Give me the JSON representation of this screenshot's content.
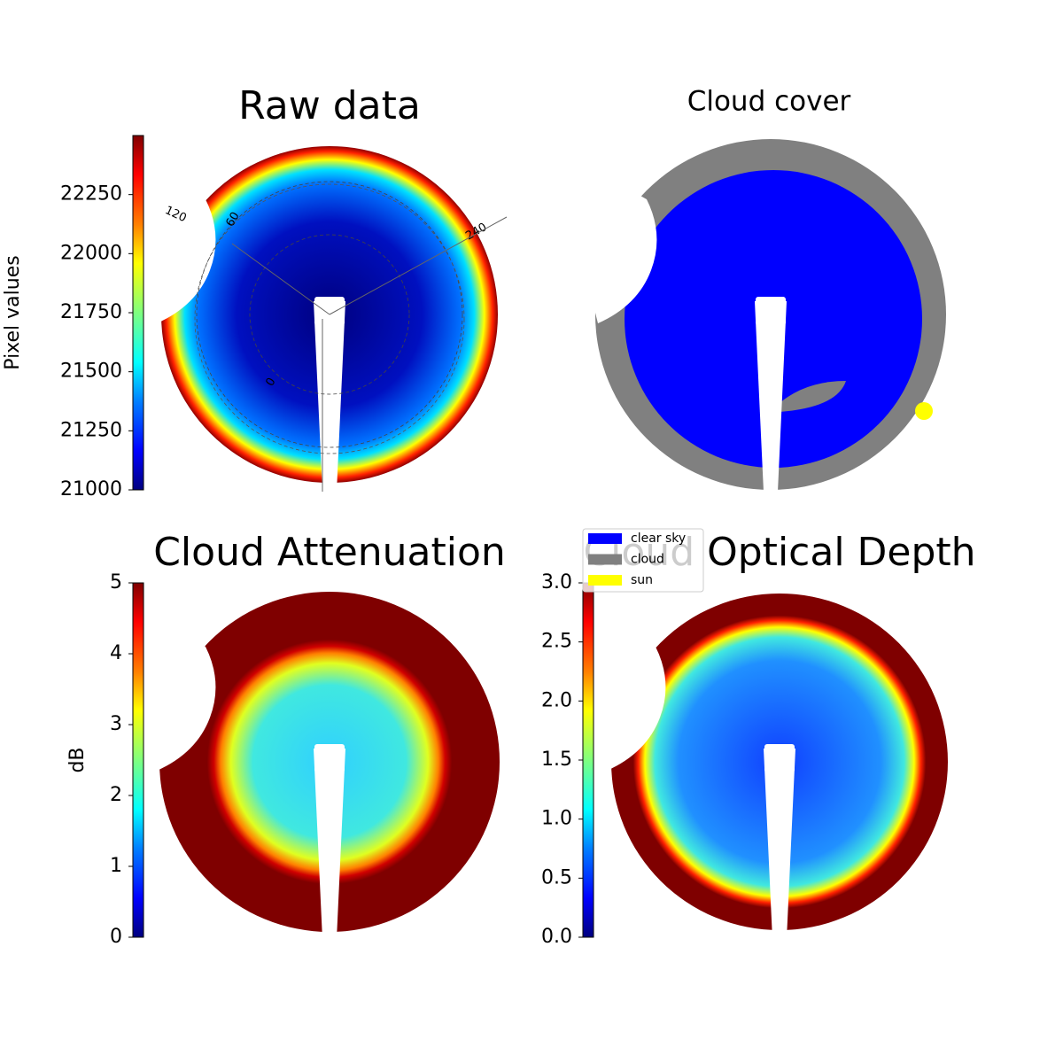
{
  "chart_data": [
    {
      "type": "image",
      "title": "Raw data",
      "colorbar": {
        "label": "Pixel values",
        "lim": [
          21000,
          22500
        ],
        "ticks": [
          21000,
          21250,
          21500,
          21750,
          22000,
          22250
        ]
      },
      "angle_ticks": [
        120,
        60,
        240,
        0
      ]
    },
    {
      "type": "image",
      "title": "Cloud cover",
      "legend": [
        {
          "name": "clear sky",
          "color": "#0000ff"
        },
        {
          "name": "cloud",
          "color": "#808080"
        },
        {
          "name": "sun",
          "color": "#ffff00"
        }
      ]
    },
    {
      "type": "image",
      "title": "Cloud Attenuation",
      "colorbar": {
        "label": "dB",
        "lim": [
          0,
          5
        ],
        "ticks": [
          0,
          1,
          2,
          3,
          4,
          5
        ]
      }
    },
    {
      "type": "image",
      "title": "Cloud Optical Depth",
      "colorbar": {
        "lim": [
          0,
          3
        ],
        "ticks": [
          {
            "value": 0,
            "label": "0.0"
          },
          0.5,
          {
            "value": 1,
            "label": "1.0"
          },
          1.5,
          {
            "value": 2,
            "label": "2.0"
          },
          2.5,
          {
            "value": 3,
            "label": "3.0"
          }
        ]
      }
    }
  ]
}
